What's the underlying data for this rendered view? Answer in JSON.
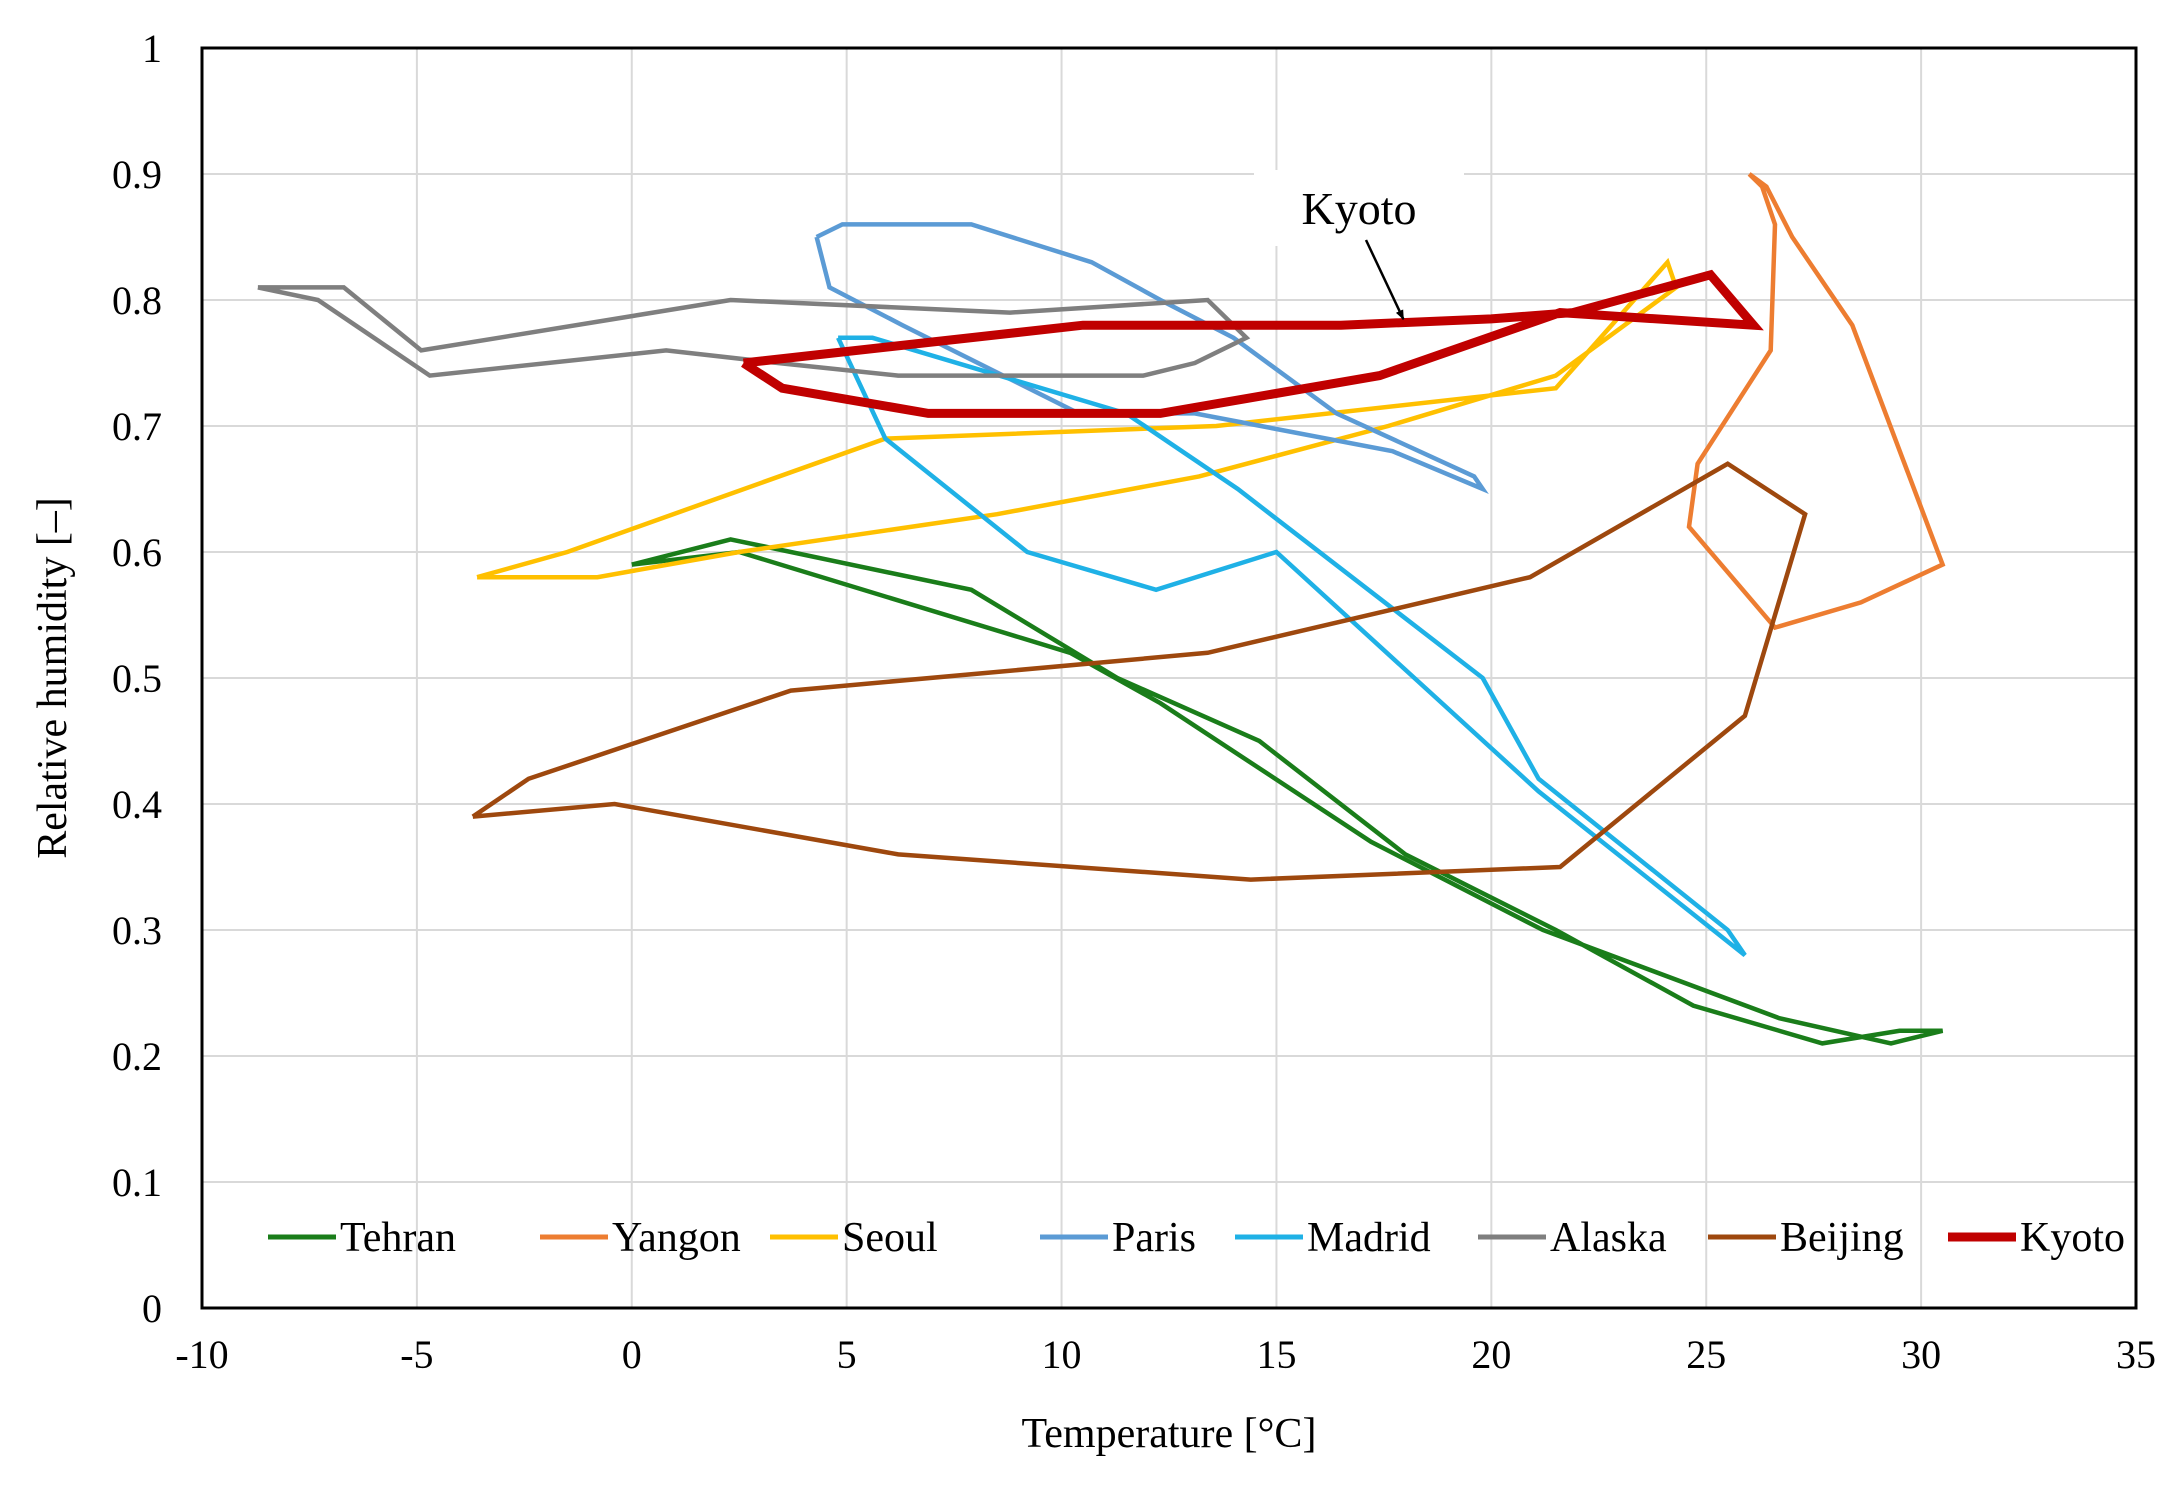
{
  "chart_data": {
    "type": "line",
    "title": "",
    "xlabel": "Temperature [°C]",
    "ylabel": "Relative humidity [–]",
    "xlim": [
      -10,
      35
    ],
    "ylim": [
      0,
      1
    ],
    "x_ticks": [
      -10,
      -5,
      0,
      5,
      10,
      15,
      20,
      25,
      30,
      35
    ],
    "x_tick_labels": [
      "-10",
      "-5",
      "0",
      "5",
      "10",
      "15",
      "20",
      "25",
      "30",
      "35"
    ],
    "y_ticks": [
      0,
      0.1,
      0.2,
      0.3,
      0.4,
      0.5,
      0.6,
      0.7,
      0.8,
      0.9,
      1
    ],
    "y_tick_labels": [
      "0",
      "0.1",
      "0.2",
      "0.3",
      "0.4",
      "0.5",
      "0.6",
      "0.7",
      "0.8",
      "0.9",
      "1"
    ],
    "grid": true,
    "legend_position": "bottom",
    "annotation": {
      "text": "Kyoto",
      "points_to": [
        18.0,
        0.78
      ]
    },
    "series": [
      {
        "name": "Tehran",
        "color": "#1a7d1a",
        "thick": false,
        "points": [
          [
            0,
            0.59
          ],
          [
            2.3,
            0.61
          ],
          [
            7.9,
            0.57
          ],
          [
            11.3,
            0.5
          ],
          [
            14.6,
            0.45
          ],
          [
            18,
            0.36
          ],
          [
            21.5,
            0.3
          ],
          [
            24.7,
            0.24
          ],
          [
            27.7,
            0.21
          ],
          [
            29.5,
            0.22
          ],
          [
            30.5,
            0.22
          ],
          [
            29.3,
            0.21
          ],
          [
            26.7,
            0.23
          ],
          [
            21.2,
            0.3
          ],
          [
            17.2,
            0.37
          ],
          [
            12.3,
            0.48
          ],
          [
            10.2,
            0.52
          ],
          [
            2.5,
            0.6
          ],
          [
            0,
            0.59
          ]
        ]
      },
      {
        "name": "Yangon",
        "color": "#ed7d31",
        "thick": false,
        "points": [
          [
            26,
            0.9
          ],
          [
            26.4,
            0.89
          ],
          [
            27,
            0.85
          ],
          [
            28.4,
            0.78
          ],
          [
            30.5,
            0.59
          ],
          [
            28.6,
            0.56
          ],
          [
            26.6,
            0.54
          ],
          [
            24.6,
            0.62
          ],
          [
            24.8,
            0.67
          ],
          [
            26.5,
            0.76
          ],
          [
            26.6,
            0.86
          ],
          [
            26.3,
            0.89
          ],
          [
            26,
            0.9
          ]
        ]
      },
      {
        "name": "Seoul",
        "color": "#ffc000",
        "thick": false,
        "points": [
          [
            -3.6,
            0.58
          ],
          [
            -0.8,
            0.58
          ],
          [
            2.5,
            0.6
          ],
          [
            8.5,
            0.63
          ],
          [
            13.2,
            0.66
          ],
          [
            17.6,
            0.7
          ],
          [
            21.5,
            0.74
          ],
          [
            24.3,
            0.81
          ],
          [
            24.1,
            0.83
          ],
          [
            21.5,
            0.73
          ],
          [
            13.6,
            0.7
          ],
          [
            5.9,
            0.69
          ],
          [
            -1.5,
            0.6
          ],
          [
            -3.6,
            0.58
          ]
        ]
      },
      {
        "name": "Paris",
        "color": "#5b9bd5",
        "thick": false,
        "points": [
          [
            4.3,
            0.85
          ],
          [
            4.9,
            0.86
          ],
          [
            7.9,
            0.86
          ],
          [
            10.7,
            0.83
          ],
          [
            12.3,
            0.8
          ],
          [
            14,
            0.77
          ],
          [
            16.4,
            0.71
          ],
          [
            19.6,
            0.66
          ],
          [
            19.8,
            0.65
          ],
          [
            17.7,
            0.68
          ],
          [
            13.1,
            0.71
          ],
          [
            10.4,
            0.71
          ],
          [
            6.3,
            0.78
          ],
          [
            4.6,
            0.81
          ],
          [
            4.3,
            0.85
          ]
        ]
      },
      {
        "name": "Madrid",
        "color": "#1fb1e6",
        "thick": false,
        "points": [
          [
            4.8,
            0.77
          ],
          [
            5.6,
            0.77
          ],
          [
            11.5,
            0.71
          ],
          [
            14.1,
            0.65
          ],
          [
            19.8,
            0.5
          ],
          [
            21.1,
            0.42
          ],
          [
            25.5,
            0.3
          ],
          [
            25.9,
            0.28
          ],
          [
            21.1,
            0.41
          ],
          [
            15,
            0.6
          ],
          [
            12.2,
            0.57
          ],
          [
            9.2,
            0.6
          ],
          [
            5.9,
            0.69
          ],
          [
            4.8,
            0.77
          ]
        ]
      },
      {
        "name": "Alaska",
        "color": "#7f7f7f",
        "thick": false,
        "points": [
          [
            -8.7,
            0.81
          ],
          [
            -6.7,
            0.81
          ],
          [
            -4.9,
            0.76
          ],
          [
            2.3,
            0.8
          ],
          [
            8.8,
            0.79
          ],
          [
            13.4,
            0.8
          ],
          [
            14.3,
            0.77
          ],
          [
            13.1,
            0.75
          ],
          [
            11.9,
            0.74
          ],
          [
            6.2,
            0.74
          ],
          [
            3.4,
            0.75
          ],
          [
            0.8,
            0.76
          ],
          [
            -4.7,
            0.74
          ],
          [
            -7.3,
            0.8
          ],
          [
            -8.7,
            0.81
          ]
        ]
      },
      {
        "name": "Beijing",
        "color": "#9e480e",
        "thick": false,
        "points": [
          [
            -3.7,
            0.39
          ],
          [
            -2.4,
            0.42
          ],
          [
            3.7,
            0.49
          ],
          [
            13.4,
            0.52
          ],
          [
            20.9,
            0.58
          ],
          [
            25.5,
            0.67
          ],
          [
            27.3,
            0.63
          ],
          [
            25.9,
            0.47
          ],
          [
            21.6,
            0.35
          ],
          [
            14.4,
            0.34
          ],
          [
            6.2,
            0.36
          ],
          [
            -0.4,
            0.4
          ],
          [
            -3.7,
            0.39
          ]
        ]
      },
      {
        "name": "Kyoto",
        "color": "#c00000",
        "thick": true,
        "points": [
          [
            2.6,
            0.75
          ],
          [
            10.5,
            0.78
          ],
          [
            16.5,
            0.78
          ],
          [
            20,
            0.785
          ],
          [
            21.9,
            0.79
          ],
          [
            25.1,
            0.82
          ],
          [
            26.1,
            0.78
          ],
          [
            21.6,
            0.79
          ],
          [
            17.4,
            0.74
          ],
          [
            12.3,
            0.71
          ],
          [
            6.9,
            0.71
          ],
          [
            3.5,
            0.73
          ],
          [
            2.6,
            0.75
          ]
        ]
      }
    ]
  }
}
